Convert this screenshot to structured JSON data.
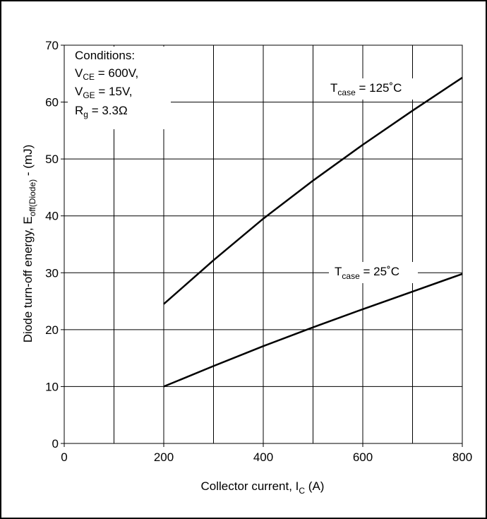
{
  "chart_data": {
    "type": "line",
    "xlabel": {
      "main": "Collector current, I",
      "sub": "C",
      "tail": " (A)"
    },
    "ylabel": {
      "main": "Diode turn-off energy, E",
      "sub": "off(Diode)",
      "tail": " - (mJ)"
    },
    "xlim": [
      0,
      800
    ],
    "ylim": [
      0,
      70
    ],
    "x_ticks": [
      0,
      200,
      400,
      600,
      800
    ],
    "y_ticks": [
      0,
      10,
      20,
      30,
      40,
      50,
      60,
      70
    ],
    "x_grid": [
      0,
      100,
      200,
      300,
      400,
      500,
      600,
      700,
      800
    ],
    "grid": true,
    "conditions": {
      "title": "Conditions:",
      "lines": [
        {
          "main": "V",
          "sub": "CE",
          "tail": " = 600V,"
        },
        {
          "main": "V",
          "sub": "GE",
          "tail": " = 15V,"
        },
        {
          "main": "R",
          "sub": "g",
          "tail": " = 3.3Ω"
        }
      ]
    },
    "series": [
      {
        "label": {
          "main": "T",
          "sub": "case",
          "tail": " = 125˚C"
        },
        "x": [
          200,
          300,
          400,
          500,
          600,
          700,
          800
        ],
        "y": [
          24.5,
          32.2,
          39.5,
          46.2,
          52.5,
          58.5,
          64.3
        ]
      },
      {
        "label": {
          "main": "T",
          "sub": "case",
          "tail": " = 25˚C"
        },
        "x": [
          200,
          300,
          400,
          500,
          600,
          700,
          800
        ],
        "y": [
          10.0,
          13.6,
          17.1,
          20.4,
          23.6,
          26.7,
          29.8
        ]
      }
    ],
    "colors": {
      "line": "#000000",
      "grid": "#000000",
      "background": "#ffffff"
    }
  }
}
